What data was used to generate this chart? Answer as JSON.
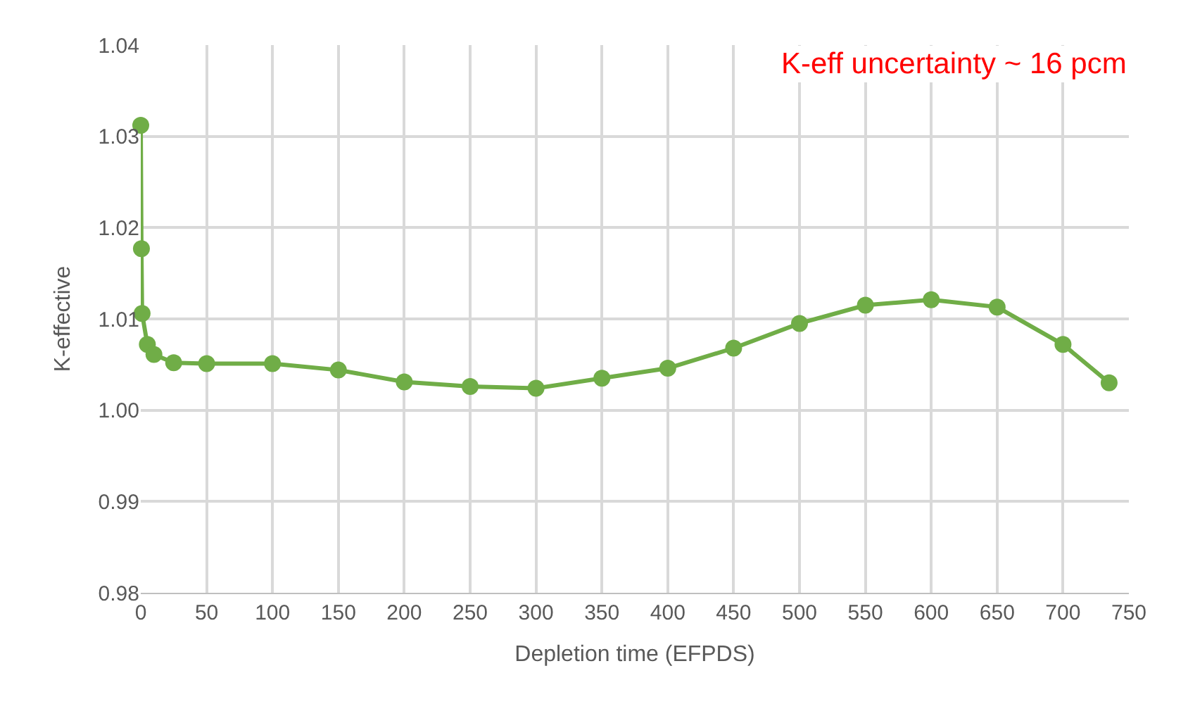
{
  "chart_data": {
    "type": "line",
    "xlabel": "Depletion time (EFPDS)",
    "ylabel": "K-effective",
    "annotations": [
      "K-eff uncertainty ~ 16 pcm"
    ],
    "x": [
      0,
      0.5,
      1,
      5,
      10,
      25,
      50,
      100,
      150,
      200,
      250,
      300,
      350,
      400,
      450,
      500,
      550,
      600,
      650,
      700,
      735
    ],
    "series": [
      {
        "color": "#70ad47",
        "values": [
          1.0312,
          1.0177,
          1.0106,
          1.0072,
          1.0061,
          1.0052,
          1.0051,
          1.0051,
          1.0044,
          1.0031,
          1.0026,
          1.0024,
          1.0035,
          1.0046,
          1.0068,
          1.0095,
          1.0115,
          1.0121,
          1.0113,
          1.0072,
          1.003
        ]
      }
    ],
    "xlim": [
      0,
      750
    ],
    "xticks": [
      0,
      50,
      100,
      150,
      200,
      250,
      300,
      350,
      400,
      450,
      500,
      550,
      600,
      650,
      700,
      750
    ],
    "ylim": [
      0.98,
      1.04
    ],
    "yticks": [
      {
        "value": 0.98,
        "label": "0.98"
      },
      {
        "value": 0.99,
        "label": "0.99"
      },
      {
        "value": 1.0,
        "label": "1.00"
      },
      {
        "value": 1.01,
        "label": "1.01"
      },
      {
        "value": 1.02,
        "label": "1.02"
      },
      {
        "value": 1.03,
        "label": "1.03"
      },
      {
        "value": 1.04,
        "label": "1.04"
      }
    ],
    "grid": true,
    "legend": false,
    "marker": "circle",
    "line_style": "solid"
  }
}
